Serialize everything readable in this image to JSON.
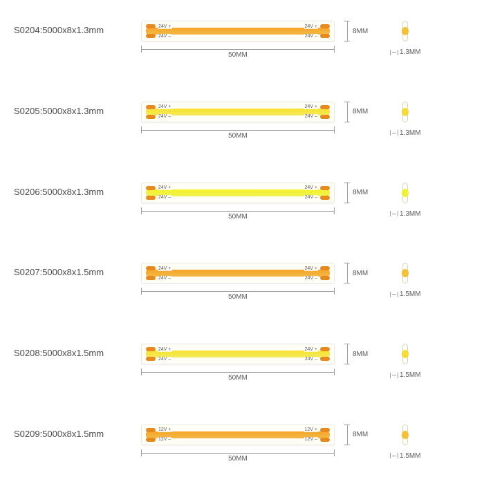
{
  "height_label": "8MM",
  "length_label": "50MM",
  "strips": [
    {
      "code": "S0204:5000x8x1.3mm",
      "depth_label": "1.3MM",
      "volt_top": "24V +",
      "volt_bot": "24V –",
      "led_color_a": "#f7a62a",
      "led_color_b": "#f2b845",
      "pad_color": "#e58a1f",
      "cross_band": "#f3c23a"
    },
    {
      "code": "S0205:5000x8x1.3mm",
      "depth_label": "1.3MM",
      "volt_top": "24V +",
      "volt_bot": "24V –",
      "led_color_a": "#f8e22e",
      "led_color_b": "#f4e95a",
      "pad_color": "#e58a1f",
      "cross_band": "#f3dc3a"
    },
    {
      "code": "S0206:5000x8x1.3mm",
      "depth_label": "1.3MM",
      "volt_top": "24V +",
      "volt_bot": "24V –",
      "led_color_a": "#f5f12a",
      "led_color_b": "#eef253",
      "pad_color": "#e58a1f",
      "cross_band": "#eff03a"
    },
    {
      "code": "S0207:5000x8x1.5mm",
      "depth_label": "1.5MM",
      "volt_top": "24V +",
      "volt_bot": "24V –",
      "led_color_a": "#f7a62a",
      "led_color_b": "#f2b845",
      "pad_color": "#e58a1f",
      "cross_band": "#f3c23a"
    },
    {
      "code": "S0208:5000x8x1.5mm",
      "depth_label": "1.5MM",
      "volt_top": "24V +",
      "volt_bot": "24V –",
      "led_color_a": "#f8e22e",
      "led_color_b": "#f4e95a",
      "pad_color": "#e58a1f",
      "cross_band": "#f3dc3a"
    },
    {
      "code": "S0209:5000x8x1.5mm",
      "depth_label": "1.5MM",
      "volt_top": "12V +",
      "volt_bot": "12V –",
      "led_color_a": "#f7a62a",
      "led_color_b": "#f2b845",
      "pad_color": "#e58a1f",
      "cross_band": "#f3c23a"
    }
  ]
}
